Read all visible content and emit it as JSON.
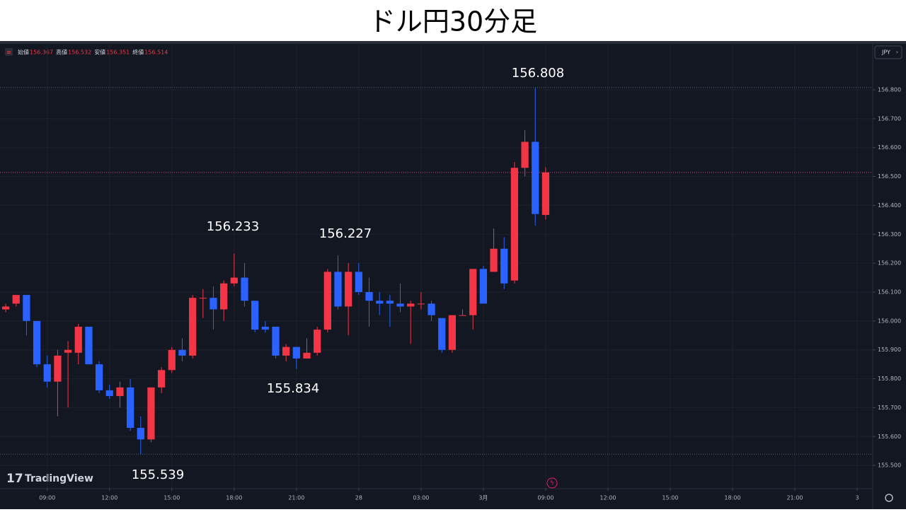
{
  "page_title": "ドル円30分足",
  "ohlc_legend": [
    {
      "label": "始値",
      "value": "156.367"
    },
    {
      "label": "高値",
      "value": "156.532"
    },
    {
      "label": "安値",
      "value": "156.351"
    },
    {
      "label": "終値",
      "value": "156.514"
    }
  ],
  "currency": "JPY",
  "brand": "TradingView",
  "chart_data": {
    "type": "candlestick",
    "up_color": "#f23645",
    "down_color": "#2962ff",
    "grid": true,
    "categories": [
      null,
      null,
      null,
      null,
      null,
      null,
      null,
      null,
      null,
      null,
      null,
      null,
      null,
      null,
      null,
      null,
      null,
      null,
      null,
      null,
      null,
      null,
      null,
      null,
      null,
      null,
      null,
      null,
      null,
      null,
      null,
      null,
      null,
      null,
      null,
      null,
      null,
      null,
      null,
      null,
      null,
      null,
      null,
      null,
      null,
      null,
      null,
      null,
      null,
      null,
      null,
      null,
      null
    ],
    "open": [
      156.04,
      156.06,
      156.09,
      156.0,
      155.85,
      155.79,
      155.89,
      155.89,
      155.98,
      155.85,
      155.76,
      155.74,
      155.77,
      155.63,
      155.59,
      155.77,
      155.83,
      155.9,
      155.88,
      156.08,
      156.08,
      156.04,
      156.13,
      156.15,
      156.07,
      155.98,
      155.98,
      155.88,
      155.91,
      155.87,
      155.89,
      155.97,
      156.17,
      156.05,
      156.17,
      156.1,
      156.07,
      156.07,
      156.06,
      156.05,
      156.06,
      156.06,
      156.01,
      155.9,
      156.02,
      156.02,
      156.18,
      156.17,
      156.25,
      156.14,
      156.53,
      156.62,
      156.367
    ],
    "high": [
      156.06,
      156.09,
      156.09,
      156.0,
      155.88,
      155.9,
      155.93,
      155.99,
      155.98,
      155.86,
      155.78,
      155.79,
      155.8,
      155.67,
      155.77,
      155.84,
      155.91,
      155.94,
      156.09,
      156.11,
      156.12,
      156.14,
      156.233,
      156.2,
      156.07,
      156.0,
      155.98,
      155.92,
      155.91,
      155.94,
      155.98,
      156.18,
      156.227,
      156.2,
      156.2,
      156.15,
      156.1,
      156.09,
      156.13,
      156.07,
      156.1,
      156.07,
      156.01,
      156.02,
      156.04,
      156.18,
      156.19,
      156.32,
      156.29,
      156.55,
      156.66,
      156.808,
      156.532
    ],
    "low": [
      156.03,
      156.05,
      155.95,
      155.84,
      155.77,
      155.67,
      155.7,
      155.85,
      155.85,
      155.75,
      155.73,
      155.7,
      155.62,
      155.539,
      155.58,
      155.75,
      155.82,
      155.86,
      155.87,
      156.01,
      155.97,
      156.0,
      156.12,
      156.05,
      155.96,
      155.96,
      155.87,
      155.86,
      155.834,
      155.87,
      155.88,
      155.96,
      156.04,
      155.95,
      156.09,
      155.98,
      156.02,
      155.98,
      156.03,
      155.92,
      156.04,
      156.0,
      155.89,
      155.89,
      156.02,
      155.97,
      156.06,
      156.17,
      156.11,
      156.13,
      156.5,
      156.33,
      156.351
    ],
    "close": [
      156.05,
      156.09,
      156.0,
      155.85,
      155.79,
      155.88,
      155.9,
      155.98,
      155.85,
      155.76,
      155.74,
      155.77,
      155.63,
      155.59,
      155.77,
      155.83,
      155.9,
      155.88,
      156.08,
      156.08,
      156.04,
      156.13,
      156.15,
      156.07,
      155.97,
      155.97,
      155.88,
      155.91,
      155.87,
      155.89,
      155.97,
      156.17,
      156.05,
      156.17,
      156.1,
      156.07,
      156.06,
      156.06,
      156.05,
      156.06,
      156.06,
      156.02,
      155.9,
      156.02,
      156.02,
      156.18,
      156.06,
      156.25,
      156.13,
      156.53,
      156.62,
      156.37,
      156.514
    ],
    "annotations": [
      "156.808",
      "156.233",
      "156.227",
      "155.834",
      "155.539"
    ],
    "xlim": [
      -0.55,
      83.5
    ],
    "xticks": [
      {
        "value": 4,
        "label": "09:00"
      },
      {
        "value": 10,
        "label": "12:00"
      },
      {
        "value": 16,
        "label": "15:00"
      },
      {
        "value": 22,
        "label": "18:00"
      },
      {
        "value": 28,
        "label": "21:00"
      },
      {
        "value": 34,
        "label": "28"
      },
      {
        "value": 40,
        "label": "03:00"
      },
      {
        "value": 46,
        "label": "3月"
      },
      {
        "value": 52,
        "label": "09:00"
      },
      {
        "value": 58,
        "label": "12:00"
      },
      {
        "value": 64,
        "label": "15:00"
      },
      {
        "value": 70,
        "label": "18:00"
      },
      {
        "value": 76,
        "label": "21:00"
      },
      {
        "value": 82,
        "label": "3"
      }
    ],
    "ylim": [
      155.422,
      156.964
    ],
    "yticks": [
      {
        "value": 155.5,
        "label": "155.500"
      },
      {
        "value": 155.6,
        "label": "155.600"
      },
      {
        "value": 155.7,
        "label": "155.700"
      },
      {
        "value": 155.8,
        "label": "155.800"
      },
      {
        "value": 155.9,
        "label": "155.900"
      },
      {
        "value": 156.0,
        "label": "156.000"
      },
      {
        "value": 156.1,
        "label": "156.100"
      },
      {
        "value": 156.2,
        "label": "156.200"
      },
      {
        "value": 156.3,
        "label": "156.300"
      },
      {
        "value": 156.4,
        "label": "156.400"
      },
      {
        "value": 156.5,
        "label": "156.500"
      },
      {
        "value": 156.6,
        "label": "156.600"
      },
      {
        "value": 156.7,
        "label": "156.700"
      },
      {
        "value": 156.8,
        "label": "156.800"
      }
    ]
  }
}
